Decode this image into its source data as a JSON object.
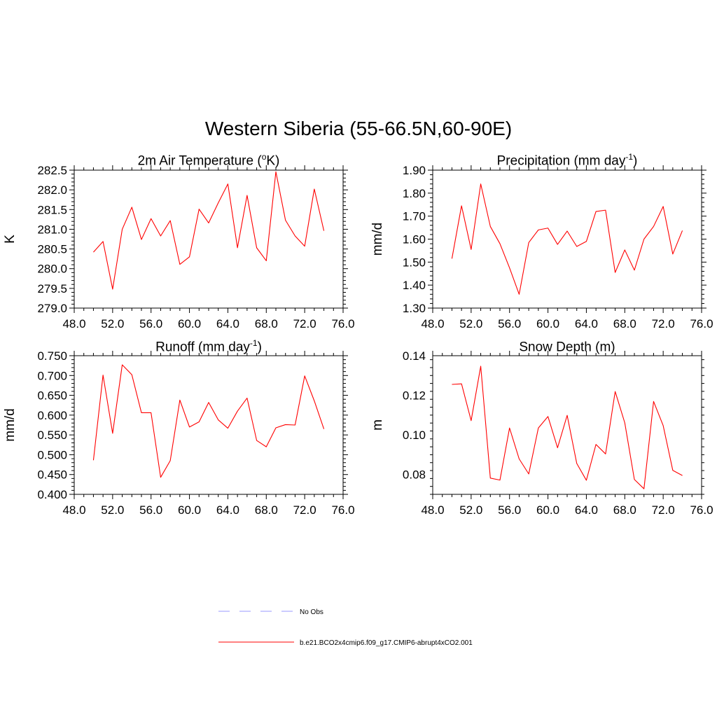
{
  "title": "Western Siberia (55-66.5N,60-90E)",
  "colors": {
    "model_line": "#ff0000",
    "obs_line": "#9999ff",
    "axis": "#000000"
  },
  "legend": [
    {
      "label": "No Obs",
      "style": "dashed",
      "color": "#9999ff"
    },
    {
      "label": "b.e21.BCO2x4cmip6.f09_g17.CMIP6-abrupt4xCO2.001",
      "style": "solid",
      "color": "#ff0000"
    }
  ],
  "chart_data": [
    {
      "id": "temp",
      "type": "line",
      "title": {
        "main": "2m Air Temperature (",
        "sup": "o",
        "tail": "K)"
      },
      "ylabel": "K",
      "xlim": [
        48,
        76
      ],
      "ylim": [
        279.0,
        282.5
      ],
      "xticks": [
        "48.0",
        "52.0",
        "56.0",
        "60.0",
        "64.0",
        "68.0",
        "72.0",
        "76.0"
      ],
      "yticks": [
        "279.0",
        "279.5",
        "280.0",
        "280.5",
        "281.0",
        "281.5",
        "282.0",
        "282.5"
      ],
      "x": [
        50,
        51,
        52,
        53,
        54,
        55,
        56,
        57,
        58,
        59,
        60,
        61,
        62,
        63,
        64,
        65,
        66,
        67,
        68,
        69,
        70,
        71,
        72,
        73,
        74
      ],
      "series": [
        {
          "values": [
            280.42,
            280.69,
            279.48,
            281.0,
            281.56,
            280.74,
            281.27,
            280.83,
            281.22,
            280.11,
            280.3,
            281.51,
            281.16,
            281.67,
            282.15,
            280.53,
            281.86,
            280.53,
            280.2,
            282.46,
            281.23,
            280.83,
            280.57,
            282.02,
            280.96
          ]
        }
      ]
    },
    {
      "id": "precip",
      "type": "line",
      "title": {
        "main": "Precipitation (mm day",
        "sup": "-1",
        "tail": ")"
      },
      "ylabel": "mm/d",
      "xlim": [
        48,
        76
      ],
      "ylim": [
        1.3,
        1.9
      ],
      "xticks": [
        "48.0",
        "52.0",
        "56.0",
        "60.0",
        "64.0",
        "68.0",
        "72.0",
        "76.0"
      ],
      "yticks": [
        "1.30",
        "1.40",
        "1.50",
        "1.60",
        "1.70",
        "1.80",
        "1.90"
      ],
      "x": [
        50,
        51,
        52,
        53,
        54,
        55,
        56,
        57,
        58,
        59,
        60,
        61,
        62,
        63,
        64,
        65,
        66,
        67,
        68,
        69,
        70,
        71,
        72,
        73,
        74
      ],
      "series": [
        {
          "values": [
            1.515,
            1.745,
            1.555,
            1.84,
            1.655,
            1.58,
            1.475,
            1.36,
            1.585,
            1.64,
            1.648,
            1.577,
            1.635,
            1.568,
            1.59,
            1.72,
            1.726,
            1.455,
            1.553,
            1.465,
            1.6,
            1.655,
            1.742,
            1.535,
            1.637
          ]
        }
      ]
    },
    {
      "id": "runoff",
      "type": "line",
      "title": {
        "main": "Runoff (mm day",
        "sup": "-1",
        "tail": ")"
      },
      "ylabel": "mm/d",
      "xlim": [
        48,
        76
      ],
      "ylim": [
        0.4,
        0.75
      ],
      "xticks": [
        "48.0",
        "52.0",
        "56.0",
        "60.0",
        "64.0",
        "68.0",
        "72.0",
        "76.0"
      ],
      "yticks": [
        "0.400",
        "0.450",
        "0.500",
        "0.550",
        "0.600",
        "0.650",
        "0.700",
        "0.750"
      ],
      "x": [
        50,
        51,
        52,
        53,
        54,
        55,
        56,
        57,
        58,
        59,
        60,
        61,
        62,
        63,
        64,
        65,
        66,
        67,
        68,
        69,
        70,
        71,
        72,
        73,
        74
      ],
      "series": [
        {
          "values": [
            0.486,
            0.701,
            0.554,
            0.727,
            0.702,
            0.606,
            0.606,
            0.443,
            0.485,
            0.638,
            0.57,
            0.583,
            0.632,
            0.588,
            0.567,
            0.61,
            0.643,
            0.536,
            0.52,
            0.568,
            0.576,
            0.575,
            0.699,
            0.636,
            0.565
          ]
        }
      ]
    },
    {
      "id": "snow",
      "type": "line",
      "title": {
        "main": "Snow Depth (m)",
        "sup": "",
        "tail": ""
      },
      "ylabel": "m",
      "xlim": [
        48,
        76
      ],
      "ylim": [
        0.07,
        0.14
      ],
      "xticks": [
        "48.0",
        "52.0",
        "56.0",
        "60.0",
        "64.0",
        "68.0",
        "72.0",
        "76.0"
      ],
      "yticks": [
        "0.08",
        "0.10",
        "0.12",
        "0.14"
      ],
      "ytick_values": [
        0.08,
        0.1,
        0.12,
        0.14
      ],
      "x": [
        50,
        51,
        52,
        53,
        54,
        55,
        56,
        57,
        58,
        59,
        60,
        61,
        62,
        63,
        64,
        65,
        66,
        67,
        68,
        69,
        70,
        71,
        72,
        73,
        74
      ],
      "series": [
        {
          "values": [
            0.1255,
            0.1258,
            0.1072,
            0.1347,
            0.0782,
            0.0772,
            0.1035,
            0.0879,
            0.0803,
            0.1035,
            0.1093,
            0.0935,
            0.1099,
            0.0856,
            0.0771,
            0.0952,
            0.0904,
            0.1219,
            0.1061,
            0.0775,
            0.0728,
            0.1169,
            0.1047,
            0.0821,
            0.0795
          ]
        }
      ]
    }
  ]
}
